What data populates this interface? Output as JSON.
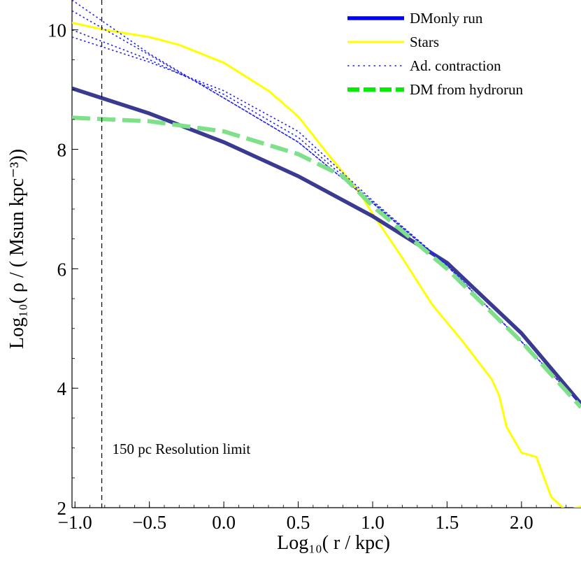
{
  "chart_data": {
    "type": "line",
    "xlabel": "Log₁₀( r / kpc)",
    "ylabel": "Log₁₀( ρ / ( Msun kpc⁻³))",
    "xlim": [
      -1.02,
      2.4
    ],
    "ylim": [
      2,
      10.5
    ],
    "xticks": [
      -1.0,
      -0.5,
      0.0,
      0.5,
      1.0,
      1.5,
      2.0
    ],
    "xtick_labels": [
      "−1.0",
      "−0.5",
      "0.0",
      "0.5",
      "1.0",
      "1.5",
      "2.0"
    ],
    "yticks": [
      2,
      4,
      6,
      8,
      10
    ],
    "ytick_labels": [
      "2",
      "4",
      "6",
      "8",
      "10"
    ],
    "legend_position": "top-right",
    "series": [
      {
        "name": "DMonly run",
        "color": "#3a3a90",
        "legend_color": "#0000ff",
        "style": "solid-thick",
        "x": [
          -1.02,
          -0.5,
          0.0,
          0.5,
          1.0,
          1.5,
          2.0,
          2.4
        ],
        "y": [
          9.02,
          8.6,
          8.12,
          7.55,
          6.88,
          6.1,
          4.92,
          3.74
        ]
      },
      {
        "name": "Stars",
        "color": "#ffff00",
        "style": "solid-thin",
        "x": [
          -1.02,
          -0.8,
          -0.5,
          -0.3,
          0.0,
          0.3,
          0.5,
          0.7,
          0.9,
          1.0,
          1.2,
          1.4,
          1.6,
          1.8,
          1.85,
          1.9,
          2.0,
          2.1,
          2.2,
          2.3,
          2.4
        ],
        "y": [
          10.12,
          10.0,
          9.88,
          9.75,
          9.45,
          8.98,
          8.55,
          7.92,
          7.32,
          6.92,
          6.18,
          5.4,
          4.8,
          4.15,
          3.88,
          3.35,
          2.92,
          2.85,
          2.18,
          1.95,
          2.02
        ]
      },
      {
        "name": "Ad. contraction",
        "color": "#2222ee",
        "style": "dotted",
        "x": [
          -1.02,
          -0.5,
          0.0,
          0.5,
          1.0,
          1.5,
          2.0,
          2.4
        ],
        "y": [
          10.5,
          9.6,
          8.86,
          8.12,
          7.1,
          6.05,
          4.78,
          3.72
        ]
      },
      {
        "name": "",
        "color": "#2222ee",
        "style": "dotted",
        "x": [
          -1.02,
          -0.5,
          0.0,
          0.5,
          1.0,
          1.5,
          2.0,
          2.4
        ],
        "y": [
          10.32,
          9.58,
          8.86,
          8.12,
          7.1,
          6.05,
          4.78,
          3.72
        ]
      },
      {
        "name": "",
        "color": "#2222ee",
        "style": "dotted",
        "x": [
          -1.02,
          -0.5,
          0.0,
          0.5,
          1.0,
          1.5,
          2.0,
          2.4
        ],
        "y": [
          10.0,
          9.5,
          8.92,
          8.2,
          7.12,
          6.06,
          4.78,
          3.72
        ]
      },
      {
        "name": "",
        "color": "#2222ee",
        "style": "dotted",
        "x": [
          -1.02,
          -0.5,
          0.0,
          0.5,
          1.0,
          1.5,
          2.0,
          2.4
        ],
        "y": [
          9.88,
          9.46,
          8.98,
          8.3,
          7.14,
          6.06,
          4.78,
          3.72
        ]
      },
      {
        "name": "DM from hydrorun",
        "color": "#7fe08a",
        "legend_color": "#00ee00",
        "style": "dashed-thick",
        "x": [
          -1.02,
          -0.5,
          0.0,
          0.5,
          0.8,
          1.0,
          1.5,
          2.0,
          2.4
        ],
        "y": [
          8.53,
          8.47,
          8.3,
          7.92,
          7.55,
          7.05,
          6.0,
          4.78,
          3.68
        ]
      }
    ],
    "vline": {
      "x": -0.82,
      "style": "dashed",
      "label": "150 pc  Resolution  limit",
      "label_x": -0.75,
      "label_y": 2.9
    }
  }
}
